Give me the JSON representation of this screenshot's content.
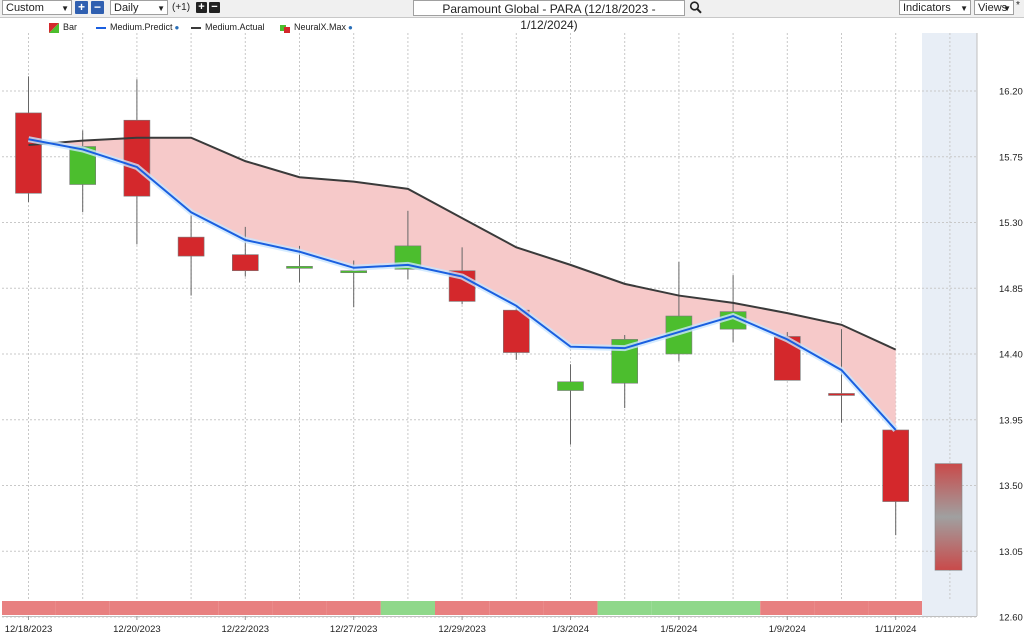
{
  "toolbar": {
    "range_select": "Custom",
    "interval_select": "Daily",
    "offset_label": "(+1)",
    "title": "Paramount Global - PARA (12/18/2023 - 1/12/2024)",
    "indicators_label": "Indicators",
    "views_label": "Views"
  },
  "icons": {
    "zoom_in": "plus-icon",
    "zoom_out": "minus-icon",
    "search": "magnifier-icon",
    "dropdown": "chevron-down-icon"
  },
  "legend": [
    {
      "label": "Bar",
      "color": "#d4282c"
    },
    {
      "label": "Medium.Predict",
      "color": "#1a5fe0"
    },
    {
      "label": "Medium.Actual",
      "color": "#3a3a3a"
    },
    {
      "label": "NeuralX.Max",
      "color": "#d4282c"
    }
  ],
  "colors": {
    "up": "#4cbe2e",
    "down": "#d4282c",
    "predict": "#1a5fe0",
    "actual": "#3a3a3a",
    "band": "#f6c9c9",
    "forecast_bg": "#e8eef6",
    "strip_red": "#e88080",
    "strip_green": "#8fd88a"
  },
  "chart_data": {
    "type": "candlestick",
    "ylim": [
      12.6,
      16.45
    ],
    "yticks": [
      "16.20",
      "15.75",
      "15.30",
      "14.85",
      "14.40",
      "13.95",
      "13.50",
      "13.05",
      "12.60"
    ],
    "xlabels": [
      "12/18/2023",
      "12/20/2023",
      "12/22/2023",
      "12/27/2023",
      "12/29/2023",
      "1/3/2024",
      "1/5/2024",
      "1/9/2024",
      "1/11/2024"
    ],
    "label_bars": [
      0,
      2,
      4,
      6,
      8,
      10,
      12,
      14,
      16
    ],
    "bars": [
      {
        "open": 15.5,
        "high": 16.3,
        "low": 15.44,
        "close": 16.05
      },
      {
        "open": 15.56,
        "high": 15.93,
        "low": 15.37,
        "close": 15.82
      },
      {
        "open": 15.48,
        "high": 16.28,
        "low": 15.15,
        "close": 16.0
      },
      {
        "open": 15.07,
        "high": 15.35,
        "low": 14.8,
        "close": 15.2
      },
      {
        "open": 14.97,
        "high": 15.27,
        "low": 14.93,
        "close": 15.08
      },
      {
        "open": 15.0,
        "high": 15.14,
        "low": 14.89,
        "close": 14.99
      },
      {
        "open": 14.97,
        "high": 15.04,
        "low": 14.72,
        "close": 14.96
      },
      {
        "open": 14.98,
        "high": 15.38,
        "low": 14.91,
        "close": 15.14
      },
      {
        "open": 14.76,
        "high": 15.13,
        "low": 14.74,
        "close": 14.97
      },
      {
        "open": 14.41,
        "high": 14.73,
        "low": 14.36,
        "close": 14.7
      },
      {
        "open": 14.15,
        "high": 14.33,
        "low": 13.78,
        "close": 14.21
      },
      {
        "open": 14.2,
        "high": 14.53,
        "low": 14.03,
        "close": 14.5
      },
      {
        "open": 14.4,
        "high": 15.03,
        "low": 14.35,
        "close": 14.66
      },
      {
        "open": 14.57,
        "high": 14.94,
        "low": 14.48,
        "close": 14.69
      },
      {
        "open": 14.52,
        "high": 14.55,
        "low": 14.22,
        "close": 14.22
      },
      {
        "open": 14.13,
        "high": 14.57,
        "low": 13.93,
        "close": 14.13
      },
      {
        "open": 13.39,
        "high": 13.88,
        "low": 13.16,
        "close": 13.88
      }
    ],
    "series": [
      {
        "name": "Medium.Predict",
        "values": [
          15.87,
          15.8,
          15.68,
          15.37,
          15.18,
          15.1,
          14.99,
          15.01,
          14.93,
          14.73,
          14.45,
          14.44,
          14.55,
          14.66,
          14.5,
          14.29,
          13.88
        ]
      },
      {
        "name": "Medium.Actual",
        "values": [
          15.83,
          15.86,
          15.88,
          15.88,
          15.72,
          15.61,
          15.58,
          15.53,
          15.33,
          15.13,
          15.01,
          14.88,
          14.8,
          14.75,
          14.68,
          14.6,
          14.43
        ]
      }
    ],
    "forecast": {
      "high": 13.65,
      "low": 12.92
    },
    "signal_strip": [
      "down",
      "down",
      "down",
      "down",
      "down",
      "down",
      "down",
      "up",
      "down",
      "down",
      "down",
      "up",
      "up",
      "up",
      "down",
      "down",
      "down"
    ]
  }
}
